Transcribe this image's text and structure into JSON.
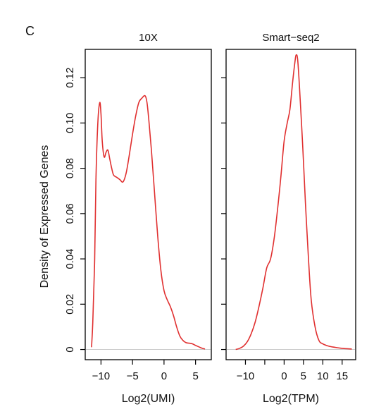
{
  "panel_label": "C",
  "y_axis_label": "Density of Expressed Genes",
  "colors": {
    "curve": "#e03030",
    "axis": "#000000",
    "baseline": "#cccccc"
  },
  "chart_data": [
    {
      "type": "line",
      "title": "10X",
      "xlabel": "Log2(UMI)",
      "ylabel": "Density of Expressed Genes",
      "xlim": [
        -12.5,
        7.5
      ],
      "ylim": [
        -0.0045,
        0.1325
      ],
      "xticks": [
        -10,
        -5,
        0,
        5
      ],
      "yticks": [
        0,
        0.02,
        0.04,
        0.06,
        0.08,
        0.1,
        0.12
      ],
      "ytick_labels": [
        "0",
        "0.02",
        "0.04",
        "0.06",
        "0.08",
        "0.10",
        "0.12"
      ],
      "grid": false,
      "series": [
        {
          "color": "#e03030",
          "x": [
            -11.5,
            -11.3,
            -11.0,
            -10.8,
            -10.5,
            -10.2,
            -10.0,
            -9.8,
            -9.5,
            -9.2,
            -8.9,
            -8.6,
            -8.3,
            -8.0,
            -7.5,
            -7.0,
            -6.5,
            -6.0,
            -5.5,
            -5.0,
            -4.5,
            -4.0,
            -3.5,
            -3.0,
            -2.7,
            -2.4,
            -2.0,
            -1.5,
            -1.0,
            -0.5,
            0.0,
            0.5,
            1.0,
            1.5,
            2.0,
            2.5,
            3.0,
            3.5,
            4.0,
            4.5,
            5.0,
            5.5,
            6.0,
            6.5
          ],
          "y": [
            0.001,
            0.012,
            0.04,
            0.075,
            0.1,
            0.109,
            0.104,
            0.092,
            0.085,
            0.087,
            0.088,
            0.084,
            0.08,
            0.077,
            0.076,
            0.075,
            0.074,
            0.078,
            0.086,
            0.095,
            0.103,
            0.109,
            0.111,
            0.112,
            0.109,
            0.101,
            0.088,
            0.069,
            0.05,
            0.035,
            0.026,
            0.022,
            0.019,
            0.015,
            0.01,
            0.006,
            0.004,
            0.003,
            0.0028,
            0.0025,
            0.0018,
            0.0012,
            0.0006,
            0.0002
          ]
        }
      ]
    },
    {
      "type": "line",
      "title": "Smart−seq2",
      "xlabel": "Log2(TPM)",
      "xlim": [
        -15,
        18.5
      ],
      "ylim": [
        -0.0045,
        0.1325
      ],
      "xticks": [
        -10,
        -5,
        0,
        5,
        10,
        15
      ],
      "xtick_labels": [
        "−10",
        "",
        "0",
        "5",
        "10",
        "15"
      ],
      "grid": false,
      "series": [
        {
          "color": "#e03030",
          "x": [
            -12.5,
            -11.5,
            -10.5,
            -9.5,
            -8.5,
            -7.5,
            -6.5,
            -5.5,
            -4.5,
            -3.5,
            -2.5,
            -1.5,
            -0.8,
            0.0,
            0.8,
            1.5,
            2.2,
            2.8,
            3.1,
            3.5,
            4.0,
            4.8,
            5.5,
            6.3,
            7.0,
            8.0,
            9.0,
            10.0,
            11.5,
            13.0,
            15.0,
            17.5
          ],
          "y": [
            0.0,
            0.0005,
            0.0015,
            0.0035,
            0.007,
            0.012,
            0.019,
            0.027,
            0.036,
            0.04,
            0.05,
            0.065,
            0.077,
            0.092,
            0.1,
            0.106,
            0.118,
            0.127,
            0.13,
            0.128,
            0.115,
            0.09,
            0.065,
            0.04,
            0.022,
            0.01,
            0.004,
            0.0025,
            0.0015,
            0.001,
            0.0005,
            0.0002
          ]
        }
      ]
    }
  ]
}
